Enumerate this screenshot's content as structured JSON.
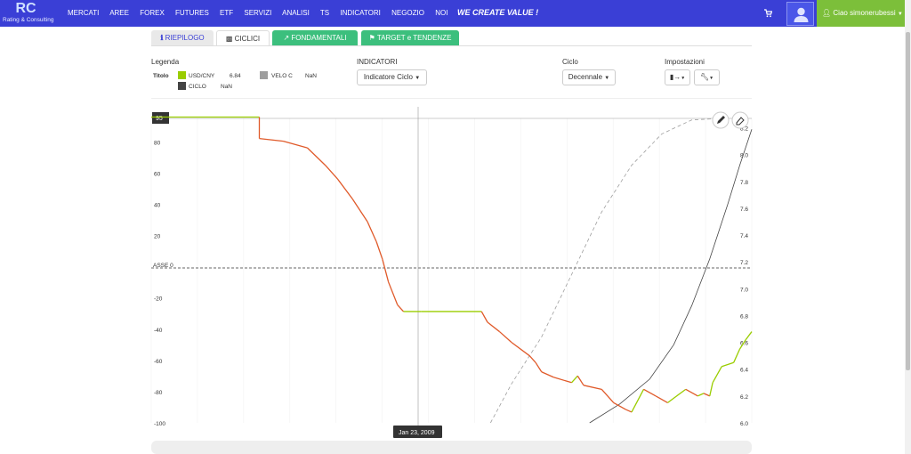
{
  "brand": {
    "logo_text": "Rating & Consulting",
    "logo_mark": "RC"
  },
  "nav": [
    "MERCATI",
    "AREE",
    "FOREX",
    "FUTURES",
    "ETF",
    "SERVIZI",
    "ANALISI",
    "TS",
    "INDICATORI",
    "NEGOZIO",
    "NOI"
  ],
  "slogan": "WE CREATE VALUE !",
  "user": {
    "greeting": "Ciao simonerubessi"
  },
  "icons": {
    "cart": "cart-icon",
    "avatar": "user-icon",
    "user": "user-small-icon"
  },
  "tabs": [
    {
      "label": "RIEPILOGO",
      "icon": "info-icon"
    },
    {
      "label": "CICLICI",
      "icon": "bar-chart-icon"
    },
    {
      "label": "FONDAMENTALI",
      "icon": "line-chart-icon"
    },
    {
      "label": "TARGET e TENDENZE",
      "icon": "flag-icon"
    }
  ],
  "legend": {
    "title": "Legenda",
    "row_label": "Titolo",
    "items": [
      {
        "name": "USD/CNY",
        "value": "6.84",
        "color": "#9acd00"
      },
      {
        "name": "VELO C",
        "value": "NaN",
        "color": "#9e9e9e"
      },
      {
        "name": "CICLO",
        "value": "NaN",
        "color": "#444444"
      }
    ]
  },
  "indicatori": {
    "title": "INDICATORI",
    "dropdown": "Indicatore Ciclo"
  },
  "ciclo": {
    "title": "Ciclo",
    "dropdown": "Decennale"
  },
  "impostazioni": {
    "title": "Impostazioni"
  },
  "chart_data": {
    "type": "line",
    "title": "",
    "cursor_value_label": "95",
    "zero_line_label": "ASSE 0",
    "crosshair_date": "Jan 23, 2009",
    "left_axis": {
      "ticks": [
        80,
        60,
        40,
        20,
        -20,
        -40,
        -60,
        -80,
        -100
      ],
      "range": [
        -100,
        95
      ]
    },
    "right_axis": {
      "ticks": [
        "8.2",
        "8.0",
        "7.8",
        "7.6",
        "7.4",
        "7.2",
        "7.0",
        "6.8",
        "6.6",
        "6.4",
        "6.2",
        "6.0"
      ],
      "range": [
        6.0,
        8.27
      ]
    },
    "series": [
      {
        "name": "USD/CNY",
        "axis": "right",
        "color_up": "#9acd00",
        "color_down": "#e05a2a",
        "points": [
          [
            0,
            8.28
          ],
          [
            0.18,
            8.28
          ],
          [
            0.18,
            8.12
          ],
          [
            0.22,
            8.1
          ],
          [
            0.26,
            8.05
          ],
          [
            0.29,
            7.92
          ],
          [
            0.31,
            7.82
          ],
          [
            0.335,
            7.67
          ],
          [
            0.36,
            7.5
          ],
          [
            0.375,
            7.35
          ],
          [
            0.385,
            7.22
          ],
          [
            0.395,
            7.05
          ],
          [
            0.41,
            6.88
          ],
          [
            0.42,
            6.83
          ],
          [
            0.45,
            6.83
          ],
          [
            0.5,
            6.83
          ],
          [
            0.55,
            6.83
          ],
          [
            0.56,
            6.75
          ],
          [
            0.58,
            6.68
          ],
          [
            0.6,
            6.6
          ],
          [
            0.63,
            6.5
          ],
          [
            0.64,
            6.45
          ],
          [
            0.65,
            6.38
          ],
          [
            0.67,
            6.34
          ],
          [
            0.7,
            6.3
          ],
          [
            0.71,
            6.35
          ],
          [
            0.72,
            6.28
          ],
          [
            0.75,
            6.25
          ],
          [
            0.77,
            6.15
          ],
          [
            0.79,
            6.1
          ],
          [
            0.8,
            6.08
          ],
          [
            0.82,
            6.25
          ],
          [
            0.84,
            6.2
          ],
          [
            0.86,
            6.15
          ],
          [
            0.89,
            6.25
          ],
          [
            0.91,
            6.2
          ],
          [
            0.92,
            6.22
          ],
          [
            0.93,
            6.2
          ],
          [
            0.935,
            6.3
          ],
          [
            0.95,
            6.42
          ],
          [
            0.97,
            6.45
          ],
          [
            0.98,
            6.55
          ],
          [
            0.99,
            6.62
          ],
          [
            1.0,
            6.68
          ]
        ]
      },
      {
        "name": "VELO C",
        "axis": "left",
        "color": "#9e9e9e",
        "points": [
          [
            0.565,
            -100
          ],
          [
            0.6,
            -75
          ],
          [
            0.65,
            -45
          ],
          [
            0.7,
            -5
          ],
          [
            0.75,
            35
          ],
          [
            0.8,
            65
          ],
          [
            0.85,
            85
          ],
          [
            0.9,
            94
          ],
          [
            0.95,
            95
          ]
        ]
      },
      {
        "name": "CICLO",
        "axis": "left",
        "color": "#444444",
        "points": [
          [
            0.73,
            -100
          ],
          [
            0.78,
            -88
          ],
          [
            0.83,
            -72
          ],
          [
            0.87,
            -50
          ],
          [
            0.9,
            -25
          ],
          [
            0.93,
            5
          ],
          [
            0.96,
            40
          ],
          [
            0.98,
            65
          ],
          [
            1.0,
            88
          ]
        ]
      }
    ]
  }
}
